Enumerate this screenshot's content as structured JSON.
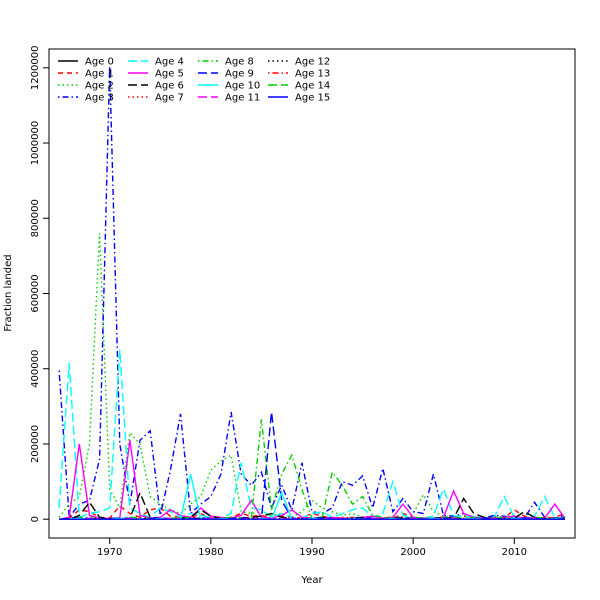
{
  "chart_data": {
    "type": "line",
    "xlabel": "Year",
    "ylabel": "Fraction landed",
    "xlim": [
      1964,
      2016
    ],
    "ylim": [
      -50000,
      1250000
    ],
    "x_ticks": [
      1970,
      1980,
      1990,
      2000,
      2010
    ],
    "y_ticks": [
      0,
      200000,
      400000,
      600000,
      800000,
      1000000,
      1200000
    ],
    "x_tick_labels": [
      "1970",
      "1980",
      "1990",
      "2000",
      "2010"
    ],
    "y_tick_labels": [
      "0",
      "200000",
      "400000",
      "600000",
      "800000",
      "1000000",
      "1200000"
    ],
    "legend_position": "top-left",
    "x": [
      1965,
      1966,
      1967,
      1968,
      1969,
      1970,
      1971,
      1972,
      1973,
      1974,
      1975,
      1976,
      1977,
      1978,
      1979,
      1980,
      1981,
      1982,
      1983,
      1984,
      1985,
      1986,
      1987,
      1988,
      1989,
      1990,
      1991,
      1992,
      1993,
      1994,
      1995,
      1996,
      1997,
      1998,
      1999,
      2000,
      2001,
      2002,
      2003,
      2004,
      2005,
      2006,
      2007,
      2008,
      2009,
      2010,
      2011,
      2012,
      2013,
      2014,
      2015
    ],
    "series": [
      {
        "name": "Age 0",
        "color": "#000000",
        "dash": "solid",
        "values": [
          0,
          0,
          0,
          0,
          0,
          0,
          0,
          0,
          0,
          0,
          0,
          0,
          0,
          0,
          0,
          0,
          0,
          0,
          0,
          0,
          0,
          0,
          0,
          0,
          0,
          0,
          0,
          0,
          0,
          0,
          0,
          0,
          0,
          0,
          0,
          0,
          0,
          0,
          0,
          0,
          0,
          0,
          0,
          0,
          0,
          0,
          0,
          0,
          0,
          0,
          0
        ]
      },
      {
        "name": "Age 1",
        "color": "#ff0000",
        "dash": "dashed",
        "values": [
          0,
          2000,
          25000,
          20000,
          5000,
          3000,
          35000,
          15000,
          5000,
          25000,
          30000,
          8000,
          5000,
          3000,
          15000,
          3000,
          2000,
          5000,
          15000,
          8000,
          10000,
          3000,
          8000,
          5000,
          3000,
          15000,
          8000,
          3000,
          2000,
          5000,
          3000,
          8000,
          3000,
          2000,
          15000,
          5000,
          3000,
          2000,
          3000,
          5000,
          8000,
          3000,
          2000,
          5000,
          3000,
          25000,
          8000,
          3000,
          2000,
          5000,
          15000
        ]
      },
      {
        "name": "Age 2",
        "color": "#00cd00",
        "dash": "dotted",
        "values": [
          5000,
          40000,
          60000,
          200000,
          760000,
          80000,
          30000,
          230000,
          200000,
          60000,
          40000,
          25000,
          15000,
          40000,
          60000,
          130000,
          155000,
          170000,
          20000,
          15000,
          20000,
          10000,
          15000,
          5000,
          20000,
          50000,
          30000,
          20000,
          10000,
          15000,
          5000,
          10000,
          3000,
          8000,
          5000,
          15000,
          65000,
          20000,
          8000,
          5000,
          10000,
          5000,
          3000,
          8000,
          5000,
          10000,
          3000,
          5000,
          2000,
          3000,
          5000
        ]
      },
      {
        "name": "Age 3",
        "color": "#0000ff",
        "dash": "dotdash",
        "values": [
          395000,
          5000,
          40000,
          50000,
          160000,
          1205000,
          200000,
          40000,
          210000,
          235000,
          10000,
          130000,
          280000,
          15000,
          40000,
          60000,
          120000,
          285000,
          120000,
          90000,
          125000,
          30000,
          90000,
          25000,
          150000,
          20000,
          15000,
          30000,
          100000,
          90000,
          115000,
          30000,
          135000,
          20000,
          55000,
          20000,
          15000,
          120000,
          10000,
          8000,
          15000,
          5000,
          3000,
          10000,
          8000,
          5000,
          3000,
          45000,
          5000,
          3000,
          10000
        ]
      },
      {
        "name": "Age 4",
        "color": "#00ffff",
        "dash": "longdash",
        "values": [
          30000,
          415000,
          5000,
          15000,
          20000,
          30000,
          450000,
          30000,
          15000,
          5000,
          30000,
          20000,
          5000,
          15000,
          10000,
          5000,
          3000,
          15000,
          150000,
          30000,
          25000,
          5000,
          15000,
          5000,
          3000,
          15000,
          20000,
          5000,
          15000,
          25000,
          30000,
          5000,
          15000,
          100000,
          10000,
          5000,
          3000,
          8000,
          80000,
          10000,
          5000,
          8000,
          3000,
          5000,
          60000,
          5000,
          3000,
          8000,
          60000,
          5000,
          3000
        ]
      },
      {
        "name": "Age 5",
        "color": "#ff00ff",
        "dash": "solid",
        "values": [
          0,
          5000,
          200000,
          10000,
          3000,
          2000,
          3000,
          210000,
          10000,
          3000,
          5000,
          25000,
          10000,
          5000,
          30000,
          8000,
          5000,
          3000,
          10000,
          50000,
          5000,
          3000,
          10000,
          25000,
          5000,
          3000,
          2000,
          5000,
          3000,
          2000,
          5000,
          8000,
          3000,
          5000,
          40000,
          5000,
          3000,
          2000,
          5000,
          75000,
          15000,
          5000,
          3000,
          2000,
          5000,
          8000,
          3000,
          5000,
          3000,
          40000,
          3000
        ]
      },
      {
        "name": "Age 6",
        "color": "#000000",
        "dash": "longdash",
        "values": [
          0,
          0,
          10000,
          45000,
          5000,
          2000,
          0,
          3000,
          70000,
          5000,
          2000,
          0,
          3000,
          5000,
          25000,
          8000,
          2000,
          0,
          3000,
          5000,
          8000,
          15000,
          5000,
          2000,
          0,
          3000,
          5000,
          2000,
          0,
          3000,
          5000,
          2000,
          0,
          3000,
          5000,
          2000,
          0,
          3000,
          5000,
          2000,
          55000,
          15000,
          5000,
          2000,
          0,
          3000,
          20000,
          5000,
          2000,
          0,
          3000
        ]
      },
      {
        "name": "Age 7",
        "color": "#ff0000",
        "dash": "dotted",
        "values": [
          0,
          0,
          2000,
          5000,
          3000,
          2000,
          0,
          2000,
          5000,
          3000,
          2000,
          0,
          2000,
          5000,
          3000,
          2000,
          0,
          2000,
          5000,
          3000,
          2000,
          0,
          2000,
          5000,
          3000,
          2000,
          0,
          2000,
          5000,
          3000,
          2000,
          0,
          2000,
          5000,
          3000,
          2000,
          0,
          2000,
          5000,
          3000,
          2000,
          0,
          2000,
          5000,
          3000,
          2000,
          0,
          2000,
          5000,
          3000,
          2000
        ]
      },
      {
        "name": "Age 8",
        "color": "#00cd00",
        "dash": "dotdash",
        "values": [
          0,
          2000,
          5000,
          3000,
          2000,
          0,
          2000,
          5000,
          3000,
          2000,
          0,
          2000,
          5000,
          3000,
          2000,
          0,
          2000,
          5000,
          3000,
          2000,
          265000,
          25000,
          120000,
          170000,
          80000,
          2000,
          5000,
          125000,
          90000,
          40000,
          60000,
          10000,
          5000,
          3000,
          2000,
          5000,
          3000,
          2000,
          5000,
          3000,
          2000,
          5000,
          3000,
          2000,
          5000,
          3000,
          2000,
          5000,
          3000,
          2000,
          5000
        ]
      },
      {
        "name": "Age 9",
        "color": "#0000ff",
        "dash": "longdash",
        "values": [
          0,
          2000,
          3000,
          2000,
          0,
          2000,
          3000,
          2000,
          0,
          2000,
          3000,
          2000,
          0,
          2000,
          3000,
          2000,
          0,
          2000,
          3000,
          2000,
          0,
          285000,
          50000,
          2000,
          0,
          2000,
          3000,
          2000,
          0,
          2000,
          3000,
          2000,
          0,
          2000,
          3000,
          2000,
          0,
          2000,
          3000,
          2000,
          0,
          2000,
          3000,
          2000,
          0,
          2000,
          3000,
          2000,
          0,
          2000,
          3000
        ]
      },
      {
        "name": "Age 10",
        "color": "#00ffff",
        "dash": "solid",
        "values": [
          0,
          0,
          2000,
          0,
          0,
          0,
          2000,
          0,
          0,
          0,
          2000,
          0,
          0,
          120000,
          0,
          0,
          2000,
          0,
          0,
          0,
          2000,
          0,
          70000,
          0,
          0,
          2000,
          0,
          0,
          0,
          2000,
          0,
          0,
          0,
          2000,
          0,
          0,
          0,
          2000,
          0,
          0,
          0,
          2000,
          0,
          0,
          0,
          2000,
          0,
          0,
          0,
          2000,
          0
        ]
      },
      {
        "name": "Age 11",
        "color": "#ff00ff",
        "dash": "longdash",
        "values": [
          0,
          0,
          0,
          2000,
          0,
          0,
          0,
          2000,
          0,
          0,
          0,
          2000,
          0,
          0,
          0,
          2000,
          0,
          0,
          0,
          2000,
          0,
          0,
          0,
          2000,
          0,
          0,
          0,
          2000,
          0,
          0,
          0,
          2000,
          0,
          0,
          0,
          2000,
          0,
          0,
          0,
          2000,
          0,
          0,
          0,
          2000,
          0,
          0,
          0,
          2000,
          0,
          0,
          0
        ]
      },
      {
        "name": "Age 12",
        "color": "#000000",
        "dash": "dotted",
        "values": [
          0,
          0,
          0,
          0,
          2000,
          0,
          0,
          0,
          0,
          2000,
          0,
          0,
          0,
          0,
          2000,
          0,
          0,
          0,
          0,
          2000,
          0,
          0,
          0,
          0,
          2000,
          0,
          0,
          0,
          0,
          2000,
          0,
          0,
          0,
          0,
          2000,
          0,
          0,
          0,
          0,
          2000,
          0,
          0,
          0,
          0,
          2000,
          0,
          0,
          0,
          0,
          2000,
          0
        ]
      },
      {
        "name": "Age 13",
        "color": "#ff0000",
        "dash": "dotdash",
        "values": [
          0,
          0,
          0,
          0,
          0,
          0,
          0,
          0,
          0,
          0,
          0,
          0,
          0,
          0,
          0,
          0,
          0,
          0,
          0,
          0,
          0,
          0,
          0,
          0,
          0,
          0,
          0,
          0,
          0,
          0,
          0,
          0,
          0,
          0,
          0,
          0,
          0,
          0,
          0,
          0,
          0,
          0,
          0,
          0,
          0,
          0,
          0,
          0,
          0,
          0,
          0
        ]
      },
      {
        "name": "Age 14",
        "color": "#00cd00",
        "dash": "longdash",
        "values": [
          0,
          0,
          0,
          0,
          0,
          0,
          0,
          0,
          0,
          0,
          0,
          0,
          0,
          0,
          0,
          0,
          0,
          0,
          0,
          0,
          0,
          0,
          0,
          0,
          0,
          0,
          0,
          0,
          0,
          0,
          0,
          0,
          0,
          0,
          0,
          0,
          0,
          0,
          0,
          0,
          0,
          0,
          0,
          0,
          0,
          0,
          0,
          0,
          0,
          0,
          0
        ]
      },
      {
        "name": "Age 15",
        "color": "#0000ff",
        "dash": "solid",
        "values": [
          0,
          0,
          0,
          0,
          0,
          0,
          0,
          0,
          0,
          0,
          0,
          0,
          0,
          0,
          0,
          0,
          0,
          0,
          0,
          0,
          0,
          0,
          0,
          0,
          0,
          0,
          0,
          0,
          0,
          0,
          0,
          0,
          0,
          0,
          0,
          0,
          0,
          0,
          0,
          0,
          0,
          0,
          0,
          0,
          0,
          0,
          0,
          0,
          0,
          0,
          0
        ]
      }
    ]
  }
}
